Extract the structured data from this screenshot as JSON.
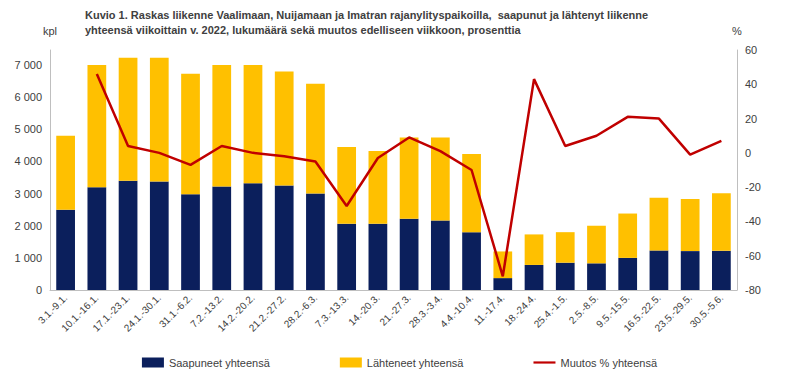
{
  "chart_data": {
    "type": "bar",
    "title": "Kuvio 1. Raskas liikenne Vaalimaan, Nuijamaan ja Imatran rajanylityspaikoilla,  saapunut ja lähtenyt liikenne\nyhteensä viikoittain v. 2022, lukumäärä sekä muutos edelliseen viikkoon, prosenttia",
    "y_label": "kpl",
    "y2_label": "%",
    "categories": [
      "3.1.-9.1.",
      "10.1.-16.1.",
      "17.1.-23.1.",
      "24.1.-30.1.",
      "31.1.-6.2.",
      "7.2.-13.2.",
      "14.2.-20.2.",
      "21.2.-27.2.",
      "28.2.-6.3.",
      "7.3.-13.3.",
      "14.-20.3.",
      "21.-27.3.",
      "28.3.-3.4.",
      "4.4.-10.4.",
      "11.-17.4.",
      "18.-24.4.",
      "25.4.-1.5.",
      "2.5.-8.5.",
      "9.5.-15.5.",
      "16.5.-22.5.",
      "23.5.-29.5.",
      "30.5.-5.6."
    ],
    "stacked": true,
    "grid": false,
    "legend": "bottom",
    "series": [
      {
        "name": "Saapuneet yhteensä",
        "type": "bar",
        "color": "#0b1f5c",
        "values": [
          2500,
          3200,
          3400,
          3380,
          2980,
          3220,
          3320,
          3250,
          3000,
          2060,
          2060,
          2220,
          2160,
          1800,
          370,
          780,
          850,
          830,
          1000,
          1230,
          1210,
          1220
        ]
      },
      {
        "name": "Lähteneet yhteensä",
        "type": "bar",
        "color": "#ffc000",
        "values": [
          2300,
          3800,
          3830,
          3850,
          3750,
          3780,
          3680,
          3550,
          3420,
          2390,
          2270,
          2530,
          2590,
          2430,
          830,
          950,
          950,
          1170,
          1380,
          1640,
          1620,
          1790
        ]
      },
      {
        "name": "Muutos % yhteensä",
        "type": "line",
        "axis": "y2",
        "color": "#c00000",
        "values": [
          null,
          46,
          4,
          0,
          -7,
          4,
          0,
          -2,
          -5,
          -31,
          -3,
          9,
          1,
          -10,
          -72,
          43,
          4,
          10,
          21,
          20,
          -1,
          7
        ]
      }
    ],
    "ylim": [
      0,
      7470
    ],
    "yticks": [
      0,
      {
        "value": 1000,
        "label": "1 000"
      },
      {
        "value": 2000,
        "label": "2 000"
      },
      {
        "value": 3000,
        "label": "3 000"
      },
      {
        "value": 4000,
        "label": "4 000"
      },
      {
        "value": 5000,
        "label": "5 000"
      },
      {
        "value": 6000,
        "label": "6 000"
      },
      {
        "value": 7000,
        "label": "7 000"
      }
    ],
    "y2lim": [
      -80,
      60
    ],
    "y2ticks": [
      -80,
      -60,
      -40,
      -20,
      0,
      20,
      40,
      60
    ]
  }
}
